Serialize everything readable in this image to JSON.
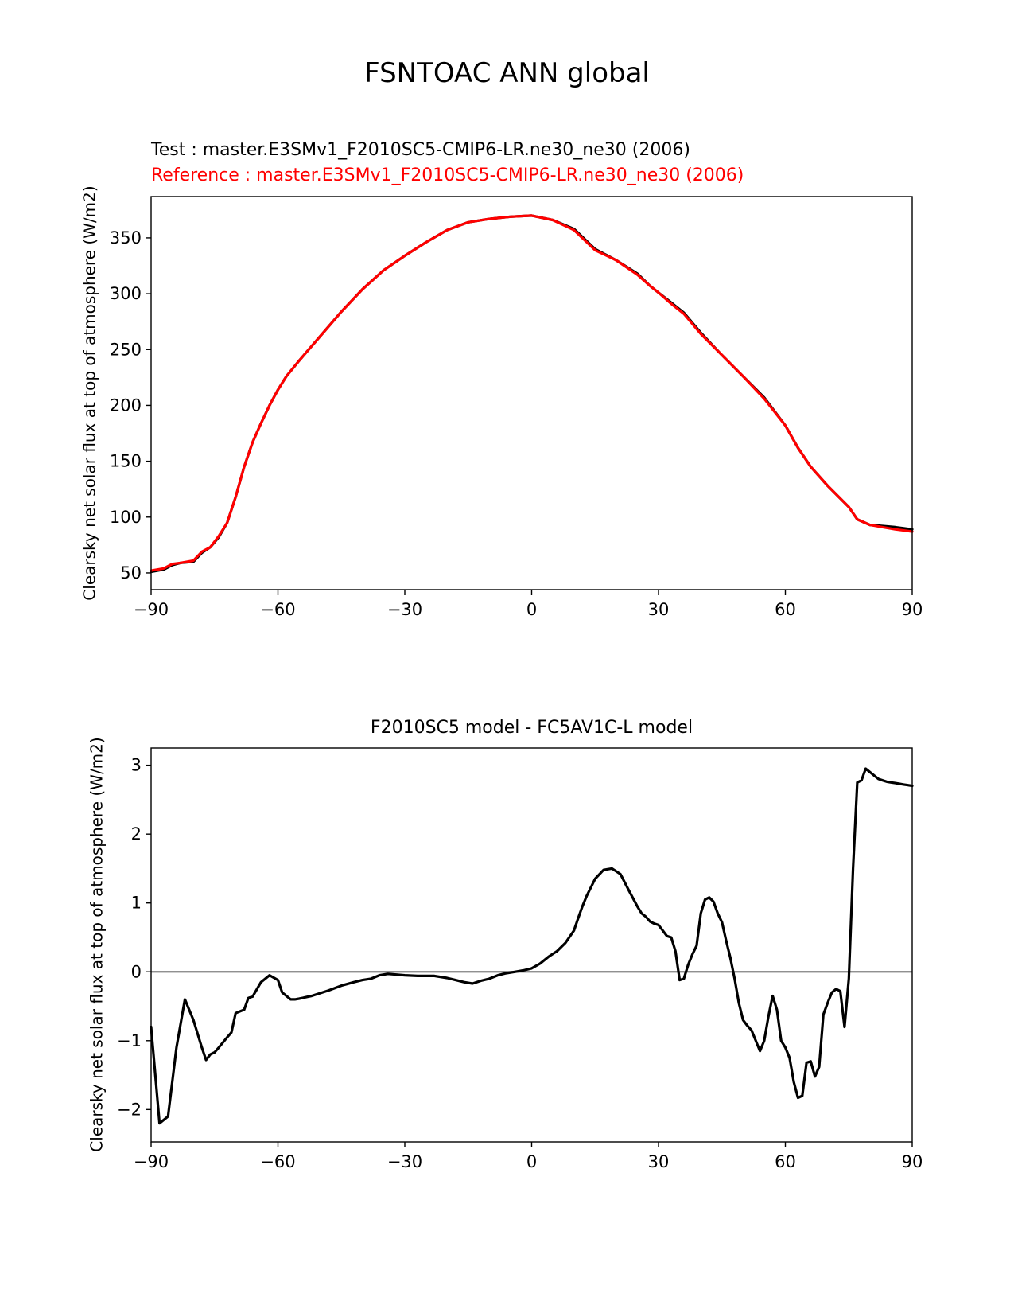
{
  "figure": {
    "title": "FSNTOAC ANN global",
    "test_label": "Test : master.E3SMv1_F2010SC5-CMIP6-LR.ne30_ne30 (2006)",
    "reference_label": "Reference : master.E3SMv1_F2010SC5-CMIP6-LR.ne30_ne30 (2006)",
    "diff_title": "F2010SC5 model - FC5AV1C-L model"
  },
  "colors": {
    "test": "#000000",
    "reference": "#ff0000",
    "zero_line": "#808080"
  },
  "chart_data": [
    {
      "type": "line",
      "ylabel": "Clearsky net solar flux at top of atmosphere (W/m2)",
      "xlim": [
        -90,
        90
      ],
      "ylim": [
        35,
        387
      ],
      "xticks": [
        -90,
        -60,
        -30,
        0,
        30,
        60,
        90
      ],
      "yticks": [
        50,
        100,
        150,
        200,
        250,
        300,
        350
      ],
      "grid": false,
      "series": [
        {
          "name": "Test : master.E3SMv1_F2010SC5-CMIP6-LR.ne30_ne30 (2006)",
          "color": "#000000",
          "x": [
            -90,
            -87,
            -85,
            -83,
            -80,
            -78,
            -76,
            -74,
            -72,
            -70,
            -68,
            -66,
            -64,
            -62,
            -60,
            -58,
            -55,
            -50,
            -45,
            -40,
            -35,
            -30,
            -25,
            -20,
            -15,
            -10,
            -5,
            0,
            5,
            10,
            15,
            20,
            25,
            28,
            30,
            33,
            36,
            40,
            45,
            50,
            55,
            60,
            63,
            66,
            70,
            75,
            77,
            80,
            83,
            86,
            88,
            90
          ],
          "y": [
            51,
            53,
            57,
            59,
            60,
            68,
            73,
            82,
            95,
            118,
            145,
            167,
            184,
            200,
            214,
            226,
            240,
            262,
            284,
            304,
            321,
            334,
            346,
            357,
            364,
            367,
            369,
            370,
            366,
            358,
            340,
            330,
            318,
            307,
            301,
            292,
            283,
            265,
            245,
            226,
            207,
            182,
            162,
            145,
            128,
            109,
            98,
            93,
            92,
            91,
            90,
            89
          ]
        },
        {
          "name": "Reference : master.E3SMv1_F2010SC5-CMIP6-LR.ne30_ne30 (2006)",
          "color": "#ff0000",
          "x": [
            -90,
            -87,
            -85,
            -83,
            -80,
            -78,
            -76,
            -74,
            -72,
            -70,
            -68,
            -66,
            -64,
            -62,
            -60,
            -58,
            -55,
            -50,
            -45,
            -40,
            -35,
            -30,
            -25,
            -20,
            -15,
            -10,
            -5,
            0,
            5,
            10,
            15,
            20,
            25,
            28,
            30,
            33,
            36,
            40,
            45,
            50,
            55,
            60,
            63,
            66,
            70,
            75,
            77,
            80,
            83,
            86,
            88,
            90
          ],
          "y": [
            52,
            54,
            58,
            59,
            61,
            69,
            73,
            83,
            95,
            118,
            145,
            167,
            184,
            200,
            214,
            226,
            240,
            262,
            284,
            304,
            321,
            334,
            346,
            357,
            364,
            367,
            369,
            370,
            366,
            357,
            339,
            330,
            317,
            307,
            301,
            291,
            282,
            264,
            245,
            226,
            206,
            182,
            162,
            145,
            128,
            109,
            98,
            93,
            91,
            89,
            88,
            87
          ]
        }
      ]
    },
    {
      "type": "line",
      "title": "F2010SC5 model - FC5AV1C-L model",
      "ylabel": "Clearsky net solar flux at top of atmosphere (W/m2)",
      "xlim": [
        -90,
        90
      ],
      "ylim": [
        -2.47,
        3.25
      ],
      "xticks": [
        -90,
        -60,
        -30,
        0,
        30,
        60,
        90
      ],
      "yticks": [
        -2,
        -1,
        0,
        1,
        2,
        3
      ],
      "grid": false,
      "zero_line": 0,
      "series": [
        {
          "color": "#000000",
          "x": [
            -90,
            -89,
            -88,
            -86,
            -84,
            -82,
            -80,
            -78,
            -77,
            -76,
            -75,
            -74,
            -72,
            -71,
            -70,
            -68,
            -67,
            -66,
            -64,
            -62,
            -60,
            -59,
            -57,
            -56,
            -55,
            -52,
            -48,
            -45,
            -42,
            -40,
            -38,
            -36,
            -34,
            -32,
            -30,
            -27,
            -23,
            -20,
            -18,
            -16,
            -14,
            -12,
            -10,
            -8,
            -6,
            -4,
            -2,
            0,
            2,
            4,
            6,
            8,
            10,
            11,
            12,
            13,
            15,
            17,
            19,
            21,
            23,
            25,
            26,
            27,
            28,
            29,
            30,
            31,
            32,
            33,
            34,
            35,
            36,
            37,
            38,
            39,
            40,
            41,
            42,
            43,
            44,
            45,
            46,
            47,
            48,
            49,
            50,
            51,
            52,
            53,
            54,
            55,
            56,
            57,
            58,
            59,
            60,
            61,
            62,
            63,
            64,
            65,
            66,
            67,
            68,
            69,
            70,
            71,
            72,
            73,
            74,
            75,
            76,
            77,
            78,
            79,
            80,
            81,
            82,
            83,
            84,
            85,
            86,
            87,
            88,
            89,
            90
          ],
          "y": [
            -0.8,
            -1.5,
            -2.2,
            -2.1,
            -1.1,
            -0.4,
            -0.7,
            -1.1,
            -1.28,
            -1.2,
            -1.17,
            -1.1,
            -0.95,
            -0.88,
            -0.6,
            -0.55,
            -0.38,
            -0.36,
            -0.15,
            -0.05,
            -0.12,
            -0.3,
            -0.4,
            -0.4,
            -0.39,
            -0.35,
            -0.27,
            -0.2,
            -0.15,
            -0.12,
            -0.1,
            -0.05,
            -0.03,
            -0.04,
            -0.05,
            -0.06,
            -0.06,
            -0.09,
            -0.12,
            -0.15,
            -0.17,
            -0.13,
            -0.1,
            -0.05,
            -0.02,
            0.0,
            0.02,
            0.05,
            0.12,
            0.22,
            0.3,
            0.42,
            0.6,
            0.78,
            0.95,
            1.1,
            1.35,
            1.48,
            1.5,
            1.42,
            1.18,
            0.95,
            0.85,
            0.8,
            0.73,
            0.7,
            0.68,
            0.6,
            0.52,
            0.5,
            0.3,
            -0.12,
            -0.1,
            0.1,
            0.25,
            0.38,
            0.85,
            1.05,
            1.08,
            1.02,
            0.85,
            0.72,
            0.45,
            0.2,
            -0.1,
            -0.45,
            -0.7,
            -0.78,
            -0.85,
            -1.0,
            -1.15,
            -1.0,
            -0.65,
            -0.35,
            -0.55,
            -1.0,
            -1.1,
            -1.25,
            -1.6,
            -1.83,
            -1.8,
            -1.32,
            -1.3,
            -1.52,
            -1.38,
            -0.62,
            -0.45,
            -0.3,
            -0.25,
            -0.28,
            -0.8,
            -0.1,
            1.5,
            2.75,
            2.78,
            2.95,
            2.9,
            2.85,
            2.8,
            2.78,
            2.76,
            2.75,
            2.74,
            2.73,
            2.72,
            2.71,
            2.7
          ]
        }
      ]
    }
  ]
}
